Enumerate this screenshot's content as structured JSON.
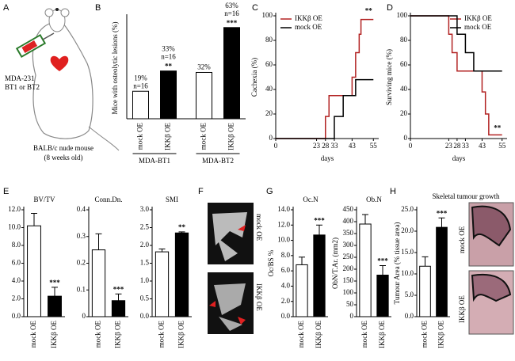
{
  "panel_a": {
    "panel": "A",
    "cell_line": [
      "MDA-231",
      "BT1 or BT2"
    ],
    "mouse": [
      "BALB/c nude mouse",
      "(8 weeks old)"
    ]
  },
  "panel_f": {
    "panel": "F",
    "image_labels": [
      "mock OE",
      "IKKβ OE"
    ]
  },
  "panel_h_images": {
    "image_labels": [
      "mock OE",
      "IKKβ OE"
    ]
  },
  "chart_data": [
    {
      "type": "bar",
      "panel": "B",
      "ylabel": "Mice with osteolytic lesions (%)",
      "ylim": [
        0,
        70
      ],
      "categories": [
        "mock OE",
        "IKKβ OE",
        "mock OE",
        "IKKβ OE"
      ],
      "values": [
        19,
        33,
        32,
        63
      ],
      "value_labels": [
        "19%",
        "33%",
        "32%",
        "63%"
      ],
      "n_labels": [
        "n=16",
        "n=16",
        null,
        "n=16"
      ],
      "significance": [
        null,
        "**",
        null,
        "***"
      ],
      "colors": [
        "#ffffff",
        "#000000",
        "#ffffff",
        "#000000"
      ],
      "groups": [
        "MDA-BT1",
        "MDA-BT2"
      ]
    },
    {
      "type": "line",
      "panel": "C",
      "ylabel": "Cachexia (%)",
      "xlabel": "days",
      "xlim": [
        0,
        58
      ],
      "ylim": [
        0,
        100
      ],
      "xticks": [
        0,
        23,
        28,
        33,
        43,
        55
      ],
      "yticks": [
        0,
        20,
        40,
        60,
        80,
        100
      ],
      "legend": "upper left",
      "significance": "**",
      "series": [
        {
          "name": "IKKβ OE",
          "color": "#b22222",
          "x": [
            0,
            28,
            28,
            30,
            30,
            43,
            43,
            45,
            45,
            47,
            47,
            48,
            48,
            55
          ],
          "values": [
            0,
            0,
            18,
            18,
            35,
            35,
            50,
            50,
            70,
            70,
            85,
            85,
            97,
            97
          ]
        },
        {
          "name": "mock OE",
          "color": "#000000",
          "x": [
            0,
            33,
            33,
            38,
            38,
            45,
            45,
            55
          ],
          "values": [
            0,
            0,
            18,
            18,
            35,
            35,
            48,
            48
          ]
        }
      ]
    },
    {
      "type": "line",
      "panel": "D",
      "ylabel": "Surviving mice (%)",
      "xlabel": "days",
      "xlim": [
        0,
        58
      ],
      "ylim": [
        0,
        100
      ],
      "xticks": [
        0,
        23,
        28,
        33,
        43,
        55
      ],
      "yticks": [
        0,
        20,
        40,
        60,
        80,
        100
      ],
      "legend": "upper right",
      "significance": "**",
      "series": [
        {
          "name": "IKKβ OE",
          "color": "#b22222",
          "x": [
            0,
            23,
            23,
            25,
            25,
            28,
            28,
            43,
            43,
            45,
            45,
            47,
            47,
            55
          ],
          "values": [
            100,
            100,
            85,
            85,
            70,
            70,
            55,
            55,
            38,
            38,
            20,
            20,
            3,
            3
          ]
        },
        {
          "name": "mock OE",
          "color": "#000000",
          "x": [
            0,
            28,
            28,
            33,
            33,
            38,
            38,
            55
          ],
          "values": [
            100,
            100,
            85,
            85,
            70,
            70,
            55,
            55
          ]
        }
      ]
    },
    {
      "type": "bar",
      "panel": "E",
      "title": "BV/TV",
      "ylim": [
        0,
        12
      ],
      "yticks": [
        {
          "value": 0,
          "label": "0.0"
        },
        {
          "value": 2,
          "label": "2.0"
        },
        {
          "value": 4,
          "label": "4.0"
        },
        {
          "value": 6,
          "label": "6.0"
        },
        {
          "value": 8,
          "label": "8.0"
        },
        {
          "value": 10,
          "label": "10.0"
        },
        {
          "value": 12,
          "label": "12.0"
        }
      ],
      "categories": [
        "mock OE",
        "IKKβ OE"
      ],
      "values": [
        10.2,
        2.3
      ],
      "errors": [
        1.4,
        1.0
      ],
      "significance": [
        null,
        "***"
      ],
      "colors": [
        "#ffffff",
        "#000000"
      ]
    },
    {
      "type": "bar",
      "title": "Conn.Dn.",
      "ylim": [
        0,
        0.4
      ],
      "yticks": [
        0,
        0.1,
        0.2,
        0.3,
        0.4
      ],
      "categories": [
        "mock OE",
        "IKKβ OE"
      ],
      "values": [
        0.25,
        0.06
      ],
      "errors": [
        0.06,
        0.025
      ],
      "significance": [
        null,
        "***"
      ],
      "colors": [
        "#ffffff",
        "#000000"
      ]
    },
    {
      "type": "bar",
      "title": "SMI",
      "ylim": [
        0,
        3
      ],
      "yticks": [
        {
          "value": 0,
          "label": "0.0"
        },
        0.5,
        {
          "value": 1,
          "label": "1.0"
        },
        1.5,
        {
          "value": 2,
          "label": "2.0"
        },
        2.5,
        {
          "value": 3,
          "label": "3.0"
        }
      ],
      "categories": [
        "mock OE",
        "IKKβ OE"
      ],
      "values": [
        1.82,
        2.35
      ],
      "errors": [
        0.08,
        0.03
      ],
      "significance": [
        null,
        "**"
      ],
      "colors": [
        "#ffffff",
        "#000000"
      ]
    },
    {
      "type": "bar",
      "panel": "G",
      "title": "Oc.N",
      "ylabel": "Oc/BS %",
      "ylim": [
        0,
        14
      ],
      "yticks": [
        {
          "value": 0,
          "label": "0.0"
        },
        {
          "value": 2,
          "label": "2.0"
        },
        {
          "value": 4,
          "label": "4.0"
        },
        {
          "value": 6,
          "label": "6.0"
        },
        {
          "value": 8,
          "label": "8.0"
        },
        {
          "value": 10,
          "label": "10.0"
        },
        {
          "value": 12,
          "label": "12.0"
        },
        {
          "value": 14,
          "label": "14.0"
        }
      ],
      "categories": [
        "mock OE",
        "IKKβ OE"
      ],
      "values": [
        6.8,
        10.7
      ],
      "errors": [
        1.0,
        1.3
      ],
      "significance": [
        null,
        "***"
      ],
      "colors": [
        "#ffffff",
        "#000000"
      ]
    },
    {
      "type": "bar",
      "title": "Ob.N",
      "ylabel": "ObN/T.Ar. (mm2)",
      "ylim": [
        0,
        450
      ],
      "yticks": [
        0,
        50,
        100,
        150,
        200,
        250,
        300,
        350,
        400,
        450
      ],
      "categories": [
        "mock OE",
        "IKKβ OE"
      ],
      "values": [
        390,
        175
      ],
      "errors": [
        40,
        40
      ],
      "significance": [
        null,
        "***"
      ],
      "colors": [
        "#ffffff",
        "#000000"
      ]
    },
    {
      "type": "bar",
      "panel": "H",
      "title": "Skeletal tumour growth",
      "ylabel": "Tumour Area (% tissue area)",
      "ylim": [
        0,
        25
      ],
      "yticks": [
        {
          "value": 0,
          "label": "0.0"
        },
        {
          "value": 5,
          "label": "5.0"
        },
        {
          "value": 10,
          "label": "10.0"
        },
        {
          "value": 15,
          "label": "15.0"
        },
        {
          "value": 20,
          "label": "20.0"
        },
        {
          "value": 25,
          "label": "25.0"
        }
      ],
      "categories": [
        "mock OE",
        "IKKβ OE"
      ],
      "values": [
        11.8,
        20.9
      ],
      "errors": [
        2.2,
        2.2
      ],
      "significance": [
        null,
        "***"
      ],
      "colors": [
        "#ffffff",
        "#000000"
      ]
    }
  ]
}
